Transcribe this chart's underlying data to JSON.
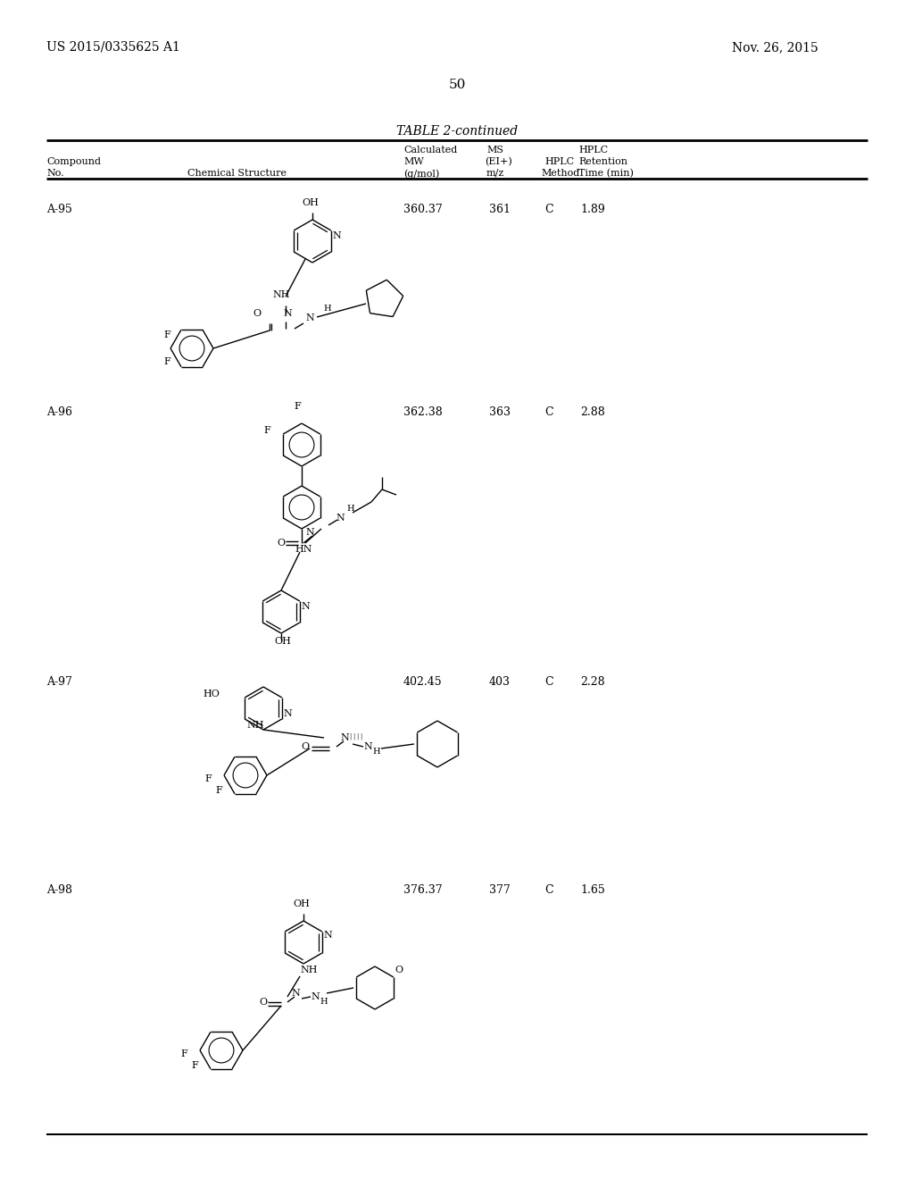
{
  "page_number": "50",
  "patent_number": "US 2015/0335625 A1",
  "patent_date": "Nov. 26, 2015",
  "table_title": "TABLE 2-continued",
  "background_color": "#ffffff",
  "text_color": "#000000",
  "compounds": [
    {
      "id": "A-95",
      "mw": "360.37",
      "ms": "361",
      "hplc_method": "C",
      "hplc_time": "1.89"
    },
    {
      "id": "A-96",
      "mw": "362.38",
      "ms": "363",
      "hplc_method": "C",
      "hplc_time": "2.88"
    },
    {
      "id": "A-97",
      "mw": "402.45",
      "ms": "403",
      "hplc_method": "C",
      "hplc_time": "2.28"
    },
    {
      "id": "A-98",
      "mw": "376.37",
      "ms": "377",
      "hplc_method": "C",
      "hplc_time": "1.65"
    }
  ]
}
